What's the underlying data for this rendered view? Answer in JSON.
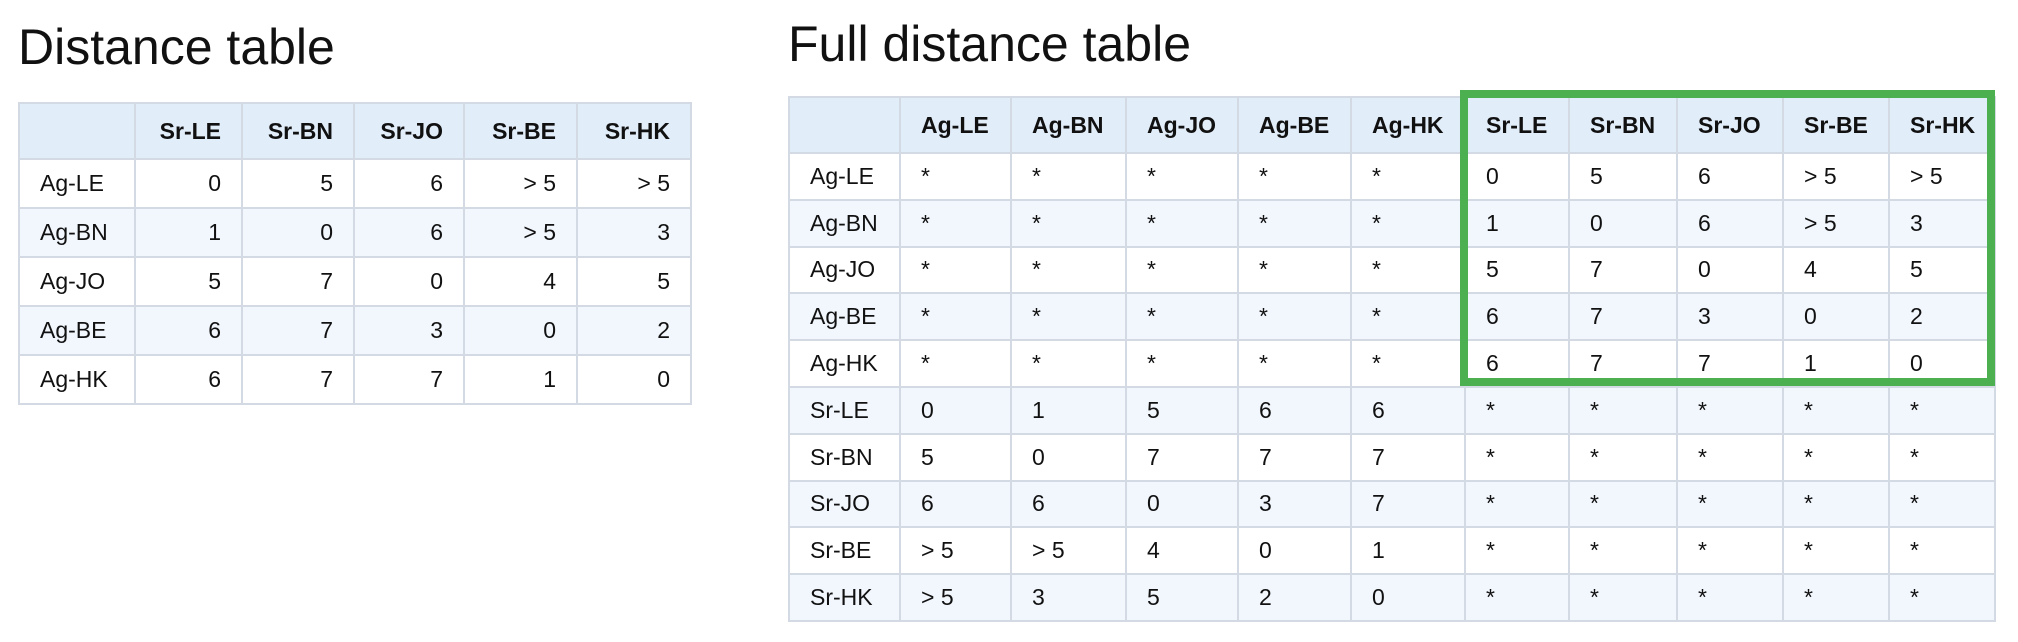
{
  "left": {
    "title": "Distance table",
    "header": [
      "",
      "Sr-LE",
      "Sr-BN",
      "Sr-JO",
      "Sr-BE",
      "Sr-HK"
    ],
    "rows": [
      [
        "Ag-LE",
        "0",
        "5",
        "6",
        "> 5",
        "> 5"
      ],
      [
        "Ag-BN",
        "1",
        "0",
        "6",
        "> 5",
        "3"
      ],
      [
        "Ag-JO",
        "5",
        "7",
        "0",
        "4",
        "5"
      ],
      [
        "Ag-BE",
        "6",
        "7",
        "3",
        "0",
        "2"
      ],
      [
        "Ag-HK",
        "6",
        "7",
        "7",
        "1",
        "0"
      ]
    ]
  },
  "right": {
    "title": "Full distance table",
    "header": [
      "",
      "Ag-LE",
      "Ag-BN",
      "Ag-JO",
      "Ag-BE",
      "Ag-HK",
      "Sr-LE",
      "Sr-BN",
      "Sr-JO",
      "Sr-BE",
      "Sr-HK"
    ],
    "rows": [
      [
        "Ag-LE",
        "*",
        "*",
        "*",
        "*",
        "*",
        "0",
        "5",
        "6",
        "> 5",
        "> 5"
      ],
      [
        "Ag-BN",
        "*",
        "*",
        "*",
        "*",
        "*",
        "1",
        "0",
        "6",
        "> 5",
        "3"
      ],
      [
        "Ag-JO",
        "*",
        "*",
        "*",
        "*",
        "*",
        "5",
        "7",
        "0",
        "4",
        "5"
      ],
      [
        "Ag-BE",
        "*",
        "*",
        "*",
        "*",
        "*",
        "6",
        "7",
        "3",
        "0",
        "2"
      ],
      [
        "Ag-HK",
        "*",
        "*",
        "*",
        "*",
        "*",
        "6",
        "7",
        "7",
        "1",
        "0"
      ],
      [
        "Sr-LE",
        "0",
        "1",
        "5",
        "6",
        "6",
        "*",
        "*",
        "*",
        "*",
        "*"
      ],
      [
        "Sr-BN",
        "5",
        "0",
        "7",
        "7",
        "7",
        "*",
        "*",
        "*",
        "*",
        "*"
      ],
      [
        "Sr-JO",
        "6",
        "6",
        "0",
        "3",
        "7",
        "*",
        "*",
        "*",
        "*",
        "*"
      ],
      [
        "Sr-BE",
        "> 5",
        "> 5",
        "4",
        "0",
        "1",
        "*",
        "*",
        "*",
        "*",
        "*"
      ],
      [
        "Sr-HK",
        "> 5",
        "3",
        "5",
        "2",
        "0",
        "*",
        "*",
        "*",
        "*",
        "*"
      ]
    ]
  },
  "colors": {
    "highlight": "#4caf50",
    "header_bg": "#e2edfa",
    "stripe_bg": "#f2f7fd",
    "border": "#d3dae3"
  }
}
